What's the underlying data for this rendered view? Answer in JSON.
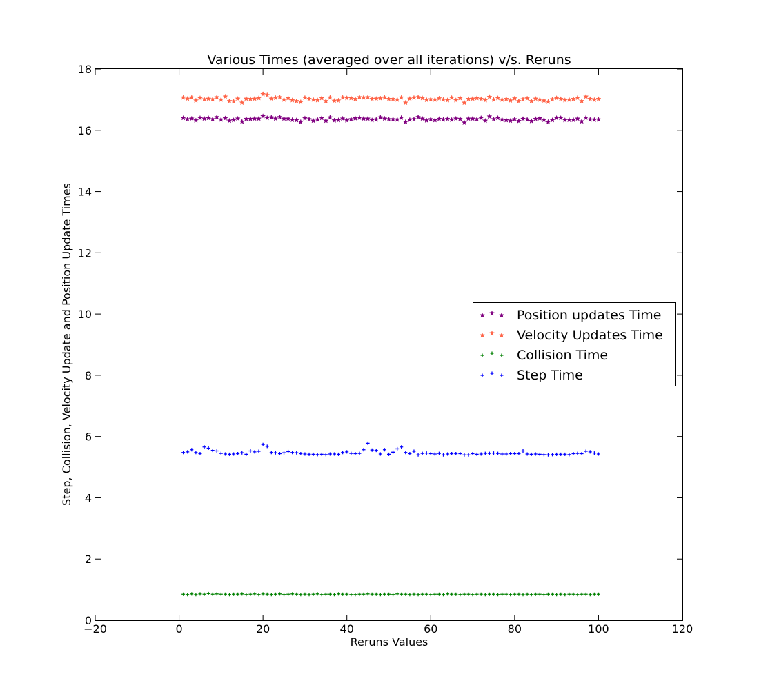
{
  "chart_data": {
    "type": "scatter",
    "title": "Various Times (averaged over all iterations) v/s. Reruns",
    "xlabel": "Reruns Values",
    "ylabel": "Step, Collision, Velocity Update and Position Update Times",
    "xlim": [
      -20,
      120
    ],
    "ylim": [
      0,
      18
    ],
    "xticks": [
      -20,
      0,
      20,
      40,
      60,
      80,
      100,
      120
    ],
    "xtick_labels": [
      "−20",
      "0",
      "20",
      "40",
      "60",
      "80",
      "100",
      "120"
    ],
    "yticks": [
      0,
      2,
      4,
      6,
      8,
      10,
      12,
      14,
      16,
      18
    ],
    "ytick_labels": [
      "0",
      "2",
      "4",
      "6",
      "8",
      "10",
      "12",
      "14",
      "16",
      "18"
    ],
    "grid": false,
    "legend_position": "center-right",
    "x": [
      1,
      2,
      3,
      4,
      5,
      6,
      7,
      8,
      9,
      10,
      11,
      12,
      13,
      14,
      15,
      16,
      17,
      18,
      19,
      20,
      21,
      22,
      23,
      24,
      25,
      26,
      27,
      28,
      29,
      30,
      31,
      32,
      33,
      34,
      35,
      36,
      37,
      38,
      39,
      40,
      41,
      42,
      43,
      44,
      45,
      46,
      47,
      48,
      49,
      50,
      51,
      52,
      53,
      54,
      55,
      56,
      57,
      58,
      59,
      60,
      61,
      62,
      63,
      64,
      65,
      66,
      67,
      68,
      69,
      70,
      71,
      72,
      73,
      74,
      75,
      76,
      77,
      78,
      79,
      80,
      81,
      82,
      83,
      84,
      85,
      86,
      87,
      88,
      89,
      90,
      91,
      92,
      93,
      94,
      95,
      96,
      97,
      98,
      99,
      100
    ],
    "series": [
      {
        "name": "Position updates Time",
        "color": "#800080",
        "marker": "star",
        "values": [
          16.4,
          16.36,
          16.38,
          16.32,
          16.4,
          16.38,
          16.4,
          16.36,
          16.43,
          16.35,
          16.39,
          16.31,
          16.33,
          16.38,
          16.28,
          16.37,
          16.37,
          16.38,
          16.38,
          16.46,
          16.4,
          16.42,
          16.38,
          16.43,
          16.38,
          16.38,
          16.34,
          16.33,
          16.27,
          16.39,
          16.36,
          16.31,
          16.35,
          16.4,
          16.31,
          16.42,
          16.32,
          16.33,
          16.38,
          16.32,
          16.36,
          16.39,
          16.41,
          16.38,
          16.38,
          16.33,
          16.35,
          16.42,
          16.38,
          16.36,
          16.36,
          16.35,
          16.41,
          16.27,
          16.34,
          16.36,
          16.43,
          16.38,
          16.32,
          16.36,
          16.33,
          16.37,
          16.35,
          16.37,
          16.34,
          16.38,
          16.37,
          16.25,
          16.38,
          16.38,
          16.36,
          16.4,
          16.31,
          16.45,
          16.36,
          16.4,
          16.35,
          16.33,
          16.31,
          16.36,
          16.3,
          16.37,
          16.35,
          16.3,
          16.37,
          16.39,
          16.34,
          16.27,
          16.33,
          16.4,
          16.4,
          16.33,
          16.34,
          16.34,
          16.38,
          16.29,
          16.41,
          16.35,
          16.34,
          16.35
        ]
      },
      {
        "name": "Velocity Updates Time",
        "color": "#ff6347",
        "marker": "star",
        "values": [
          17.07,
          17.03,
          17.07,
          16.97,
          17.05,
          17.01,
          17.03,
          17.01,
          17.08,
          17.0,
          17.1,
          16.95,
          16.94,
          17.03,
          16.9,
          17.03,
          17.02,
          17.03,
          17.05,
          17.18,
          17.15,
          17.03,
          17.06,
          17.08,
          17.0,
          17.05,
          16.98,
          16.95,
          16.92,
          17.06,
          17.02,
          17.0,
          16.98,
          17.05,
          16.95,
          17.07,
          16.96,
          16.97,
          17.07,
          17.05,
          17.05,
          17.02,
          17.08,
          17.07,
          17.08,
          17.02,
          17.03,
          17.04,
          17.07,
          17.02,
          17.02,
          17.0,
          17.07,
          16.9,
          17.03,
          17.06,
          17.08,
          17.05,
          16.99,
          17.01,
          17.0,
          17.04,
          17.0,
          16.98,
          17.06,
          16.98,
          17.05,
          16.9,
          17.02,
          17.03,
          17.05,
          17.02,
          16.98,
          17.09,
          17.0,
          17.05,
          17.0,
          17.02,
          16.97,
          17.04,
          16.95,
          17.01,
          17.04,
          16.95,
          17.03,
          17.0,
          16.97,
          16.93,
          17.01,
          17.05,
          17.02,
          16.98,
          17.0,
          17.02,
          17.06,
          16.95,
          17.1,
          17.02,
          16.99,
          17.02
        ]
      },
      {
        "name": "Collision Time",
        "color": "#008000",
        "marker": "plus",
        "values": [
          0.85,
          0.84,
          0.86,
          0.84,
          0.86,
          0.85,
          0.87,
          0.85,
          0.86,
          0.85,
          0.85,
          0.84,
          0.85,
          0.85,
          0.86,
          0.84,
          0.85,
          0.86,
          0.84,
          0.86,
          0.85,
          0.84,
          0.85,
          0.86,
          0.84,
          0.85,
          0.86,
          0.85,
          0.84,
          0.85,
          0.84,
          0.85,
          0.86,
          0.84,
          0.85,
          0.85,
          0.84,
          0.86,
          0.85,
          0.85,
          0.84,
          0.84,
          0.85,
          0.85,
          0.86,
          0.85,
          0.85,
          0.84,
          0.85,
          0.85,
          0.84,
          0.86,
          0.85,
          0.85,
          0.84,
          0.85,
          0.84,
          0.85,
          0.85,
          0.84,
          0.85,
          0.85,
          0.84,
          0.86,
          0.85,
          0.85,
          0.84,
          0.85,
          0.85,
          0.84,
          0.85,
          0.85,
          0.84,
          0.85,
          0.85,
          0.84,
          0.85,
          0.85,
          0.84,
          0.85,
          0.85,
          0.84,
          0.85,
          0.84,
          0.85,
          0.85,
          0.84,
          0.85,
          0.85,
          0.84,
          0.85,
          0.84,
          0.85,
          0.85,
          0.84,
          0.85,
          0.85,
          0.84,
          0.85,
          0.85
        ]
      },
      {
        "name": "Step Time",
        "color": "#0000ff",
        "marker": "plus",
        "values": [
          5.48,
          5.5,
          5.57,
          5.48,
          5.44,
          5.66,
          5.62,
          5.55,
          5.53,
          5.45,
          5.43,
          5.42,
          5.43,
          5.44,
          5.47,
          5.42,
          5.53,
          5.5,
          5.52,
          5.74,
          5.68,
          5.48,
          5.47,
          5.44,
          5.47,
          5.51,
          5.48,
          5.47,
          5.44,
          5.43,
          5.42,
          5.42,
          5.41,
          5.42,
          5.41,
          5.43,
          5.43,
          5.42,
          5.48,
          5.5,
          5.45,
          5.44,
          5.45,
          5.57,
          5.78,
          5.56,
          5.55,
          5.43,
          5.57,
          5.42,
          5.49,
          5.6,
          5.66,
          5.48,
          5.44,
          5.52,
          5.4,
          5.45,
          5.46,
          5.44,
          5.43,
          5.45,
          5.4,
          5.43,
          5.44,
          5.44,
          5.44,
          5.4,
          5.4,
          5.44,
          5.42,
          5.43,
          5.45,
          5.45,
          5.46,
          5.45,
          5.43,
          5.43,
          5.44,
          5.44,
          5.44,
          5.53,
          5.43,
          5.42,
          5.43,
          5.42,
          5.41,
          5.4,
          5.41,
          5.42,
          5.42,
          5.42,
          5.41,
          5.44,
          5.45,
          5.44,
          5.52,
          5.5,
          5.46,
          5.43
        ]
      }
    ]
  }
}
